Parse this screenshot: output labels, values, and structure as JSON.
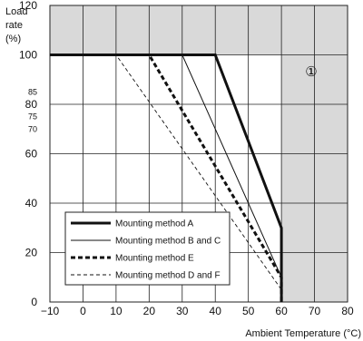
{
  "chart_data": {
    "type": "line",
    "xlabel": "Ambient Temperature (°C)",
    "ylabel_lines": [
      "Load",
      "rate",
      "(%)"
    ],
    "xlim": [
      -10,
      80
    ],
    "ylim": [
      0,
      120
    ],
    "x_ticks": [
      "−10",
      "0",
      "10",
      "20",
      "30",
      "40",
      "50",
      "60",
      "70",
      "80"
    ],
    "y_ticks": [
      "0",
      "20",
      "40",
      "60",
      "80",
      "100",
      "120"
    ],
    "y_minor_ticks": [
      "85",
      "75",
      "70"
    ],
    "grid": true,
    "legend_position": "lower-left",
    "annotation": "①",
    "shaded_regions": [
      {
        "x_from": -10,
        "x_to": 80,
        "y_from": 100,
        "y_to": 120
      },
      {
        "x_from": 60,
        "x_to": 80,
        "y_from": 0,
        "y_to": 100
      }
    ],
    "series": [
      {
        "name": "Mounting method A",
        "style": "thick-solid",
        "points": [
          [
            -10,
            100
          ],
          [
            40,
            100
          ],
          [
            50,
            65
          ],
          [
            60,
            30
          ],
          [
            60,
            0
          ]
        ]
      },
      {
        "name": "Mounting method B and C",
        "style": "thin-solid",
        "points": [
          [
            -10,
            100
          ],
          [
            30,
            100
          ],
          [
            60,
            10
          ],
          [
            60,
            0
          ]
        ]
      },
      {
        "name": "Mounting method E",
        "style": "thick-dashed",
        "points": [
          [
            -10,
            100
          ],
          [
            20,
            100
          ],
          [
            60,
            10
          ],
          [
            60,
            0
          ]
        ]
      },
      {
        "name": "Mounting method D and F",
        "style": "thin-dashed",
        "points": [
          [
            -10,
            100
          ],
          [
            10,
            100
          ],
          [
            60,
            5
          ],
          [
            60,
            0
          ]
        ]
      }
    ],
    "colors": {
      "shade": "#d9d9d9",
      "line": "#111111",
      "grid": "#222222"
    }
  }
}
